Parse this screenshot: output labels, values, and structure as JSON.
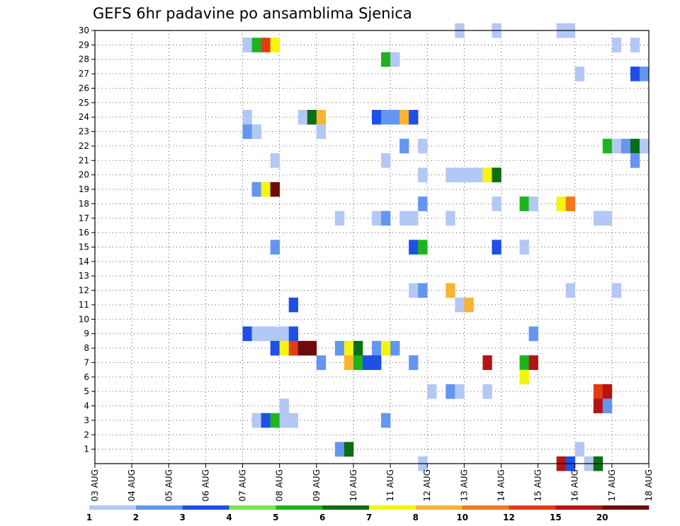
{
  "chart_data": {
    "type": "heatmap",
    "title": "GEFS 6hr padavine po ansamblima Sjenica",
    "x_tick_labels": [
      "03 AUG",
      "04 AUG",
      "05 AUG",
      "06 AUG",
      "07 AUG",
      "08 AUG",
      "09 AUG",
      "10 AUG",
      "11 AUG",
      "12 AUG",
      "13 AUG",
      "14 AUG",
      "15 AUG",
      "16 AUG",
      "17 AUG",
      "18 AUG"
    ],
    "y_tick_labels": [
      "1",
      "2",
      "3",
      "4",
      "5",
      "6",
      "7",
      "8",
      "9",
      "10",
      "11",
      "12",
      "13",
      "14",
      "15",
      "16",
      "17",
      "18",
      "19",
      "20",
      "21",
      "22",
      "23",
      "24",
      "25",
      "26",
      "27",
      "28",
      "29",
      "30"
    ],
    "xlim": [
      "03 AUG 00Z",
      "18 AUG 00Z"
    ],
    "ylim": [
      0,
      30
    ],
    "time_step_hours": 6,
    "grid": true,
    "legend_position": "bottom",
    "colorbar": {
      "levels": [
        "1",
        "2",
        "3",
        "4",
        "5",
        "6",
        "7",
        "8",
        "10",
        "12",
        "15",
        "20"
      ],
      "colors": [
        "#b4c8f5",
        "#6496f0",
        "#1e50e6",
        "#78e650",
        "#1eb41e",
        "#0a6e14",
        "#f5f50a",
        "#fab432",
        "#f5781e",
        "#e13c14",
        "#b41414",
        "#6e0a0a"
      ]
    },
    "cells": [
      {
        "member": 30,
        "step": "13 AUG 00Z",
        "level": 1
      },
      {
        "member": 30,
        "step": "14 AUG 00Z",
        "level": 1
      },
      {
        "member": 30,
        "step": "15 AUG 18Z",
        "level": 1
      },
      {
        "member": 30,
        "step": "16 AUG 00Z",
        "level": 1
      },
      {
        "member": 29,
        "step": "07 AUG 06Z",
        "level": 1
      },
      {
        "member": 29,
        "step": "07 AUG 12Z",
        "level": 5
      },
      {
        "member": 29,
        "step": "07 AUG 18Z",
        "level": 12
      },
      {
        "member": 29,
        "step": "08 AUG 00Z",
        "level": 7
      },
      {
        "member": 29,
        "step": "17 AUG 06Z",
        "level": 1
      },
      {
        "member": 29,
        "step": "17 AUG 18Z",
        "level": 1
      },
      {
        "member": 28,
        "step": "11 AUG 00Z",
        "level": 5
      },
      {
        "member": 28,
        "step": "11 AUG 06Z",
        "level": 1
      },
      {
        "member": 27,
        "step": "16 AUG 06Z",
        "level": 1
      },
      {
        "member": 27,
        "step": "17 AUG 18Z",
        "level": 3
      },
      {
        "member": 27,
        "step": "18 AUG 00Z",
        "level": 2
      },
      {
        "member": 24,
        "step": "07 AUG 06Z",
        "level": 1
      },
      {
        "member": 24,
        "step": "08 AUG 18Z",
        "level": 1
      },
      {
        "member": 24,
        "step": "09 AUG 00Z",
        "level": 6
      },
      {
        "member": 24,
        "step": "09 AUG 06Z",
        "level": 8
      },
      {
        "member": 24,
        "step": "10 AUG 18Z",
        "level": 3
      },
      {
        "member": 24,
        "step": "11 AUG 00Z",
        "level": 2
      },
      {
        "member": 24,
        "step": "11 AUG 06Z",
        "level": 2
      },
      {
        "member": 24,
        "step": "11 AUG 12Z",
        "level": 8
      },
      {
        "member": 24,
        "step": "11 AUG 18Z",
        "level": 3
      },
      {
        "member": 23,
        "step": "07 AUG 06Z",
        "level": 2
      },
      {
        "member": 23,
        "step": "07 AUG 12Z",
        "level": 1
      },
      {
        "member": 23,
        "step": "09 AUG 06Z",
        "level": 1
      },
      {
        "member": 22,
        "step": "11 AUG 12Z",
        "level": 2
      },
      {
        "member": 22,
        "step": "12 AUG 00Z",
        "level": 1
      },
      {
        "member": 22,
        "step": "17 AUG 00Z",
        "level": 5
      },
      {
        "member": 22,
        "step": "17 AUG 06Z",
        "level": 1
      },
      {
        "member": 22,
        "step": "17 AUG 12Z",
        "level": 2
      },
      {
        "member": 22,
        "step": "17 AUG 18Z",
        "level": 6
      },
      {
        "member": 22,
        "step": "18 AUG 00Z",
        "level": 1
      },
      {
        "member": 21,
        "step": "08 AUG 00Z",
        "level": 1
      },
      {
        "member": 21,
        "step": "11 AUG 00Z",
        "level": 1
      },
      {
        "member": 21,
        "step": "17 AUG 18Z",
        "level": 2
      },
      {
        "member": 20,
        "step": "12 AUG 00Z",
        "level": 1
      },
      {
        "member": 20,
        "step": "12 AUG 18Z",
        "level": 1
      },
      {
        "member": 20,
        "step": "13 AUG 00Z",
        "level": 1
      },
      {
        "member": 20,
        "step": "13 AUG 06Z",
        "level": 1
      },
      {
        "member": 20,
        "step": "13 AUG 12Z",
        "level": 1
      },
      {
        "member": 20,
        "step": "13 AUG 18Z",
        "level": 7
      },
      {
        "member": 20,
        "step": "14 AUG 00Z",
        "level": 6
      },
      {
        "member": 19,
        "step": "07 AUG 12Z",
        "level": 2
      },
      {
        "member": 19,
        "step": "07 AUG 18Z",
        "level": 7
      },
      {
        "member": 19,
        "step": "08 AUG 00Z",
        "level": 20
      },
      {
        "member": 18,
        "step": "12 AUG 00Z",
        "level": 2
      },
      {
        "member": 18,
        "step": "14 AUG 00Z",
        "level": 1
      },
      {
        "member": 18,
        "step": "14 AUG 18Z",
        "level": 5
      },
      {
        "member": 18,
        "step": "15 AUG 00Z",
        "level": 1
      },
      {
        "member": 18,
        "step": "15 AUG 18Z",
        "level": 7
      },
      {
        "member": 18,
        "step": "16 AUG 00Z",
        "level": 10
      },
      {
        "member": 17,
        "step": "09 AUG 18Z",
        "level": 1
      },
      {
        "member": 17,
        "step": "10 AUG 18Z",
        "level": 1
      },
      {
        "member": 17,
        "step": "11 AUG 00Z",
        "level": 2
      },
      {
        "member": 17,
        "step": "11 AUG 12Z",
        "level": 1
      },
      {
        "member": 17,
        "step": "11 AUG 18Z",
        "level": 1
      },
      {
        "member": 17,
        "step": "12 AUG 18Z",
        "level": 1
      },
      {
        "member": 17,
        "step": "16 AUG 18Z",
        "level": 1
      },
      {
        "member": 17,
        "step": "17 AUG 00Z",
        "level": 1
      },
      {
        "member": 15,
        "step": "08 AUG 00Z",
        "level": 2
      },
      {
        "member": 15,
        "step": "11 AUG 18Z",
        "level": 3
      },
      {
        "member": 15,
        "step": "12 AUG 00Z",
        "level": 5
      },
      {
        "member": 15,
        "step": "14 AUG 00Z",
        "level": 3
      },
      {
        "member": 15,
        "step": "14 AUG 18Z",
        "level": 1
      },
      {
        "member": 12,
        "step": "11 AUG 18Z",
        "level": 1
      },
      {
        "member": 12,
        "step": "12 AUG 00Z",
        "level": 2
      },
      {
        "member": 12,
        "step": "12 AUG 18Z",
        "level": 8
      },
      {
        "member": 12,
        "step": "16 AUG 00Z",
        "level": 1
      },
      {
        "member": 12,
        "step": "17 AUG 06Z",
        "level": 1
      },
      {
        "member": 11,
        "step": "08 AUG 12Z",
        "level": 3
      },
      {
        "member": 11,
        "step": "13 AUG 00Z",
        "level": 1
      },
      {
        "member": 11,
        "step": "13 AUG 06Z",
        "level": 8
      },
      {
        "member": 9,
        "step": "07 AUG 06Z",
        "level": 3
      },
      {
        "member": 9,
        "step": "07 AUG 12Z",
        "level": 1
      },
      {
        "member": 9,
        "step": "07 AUG 18Z",
        "level": 1
      },
      {
        "member": 9,
        "step": "08 AUG 00Z",
        "level": 1
      },
      {
        "member": 9,
        "step": "08 AUG 06Z",
        "level": 1
      },
      {
        "member": 9,
        "step": "08 AUG 12Z",
        "level": 3
      },
      {
        "member": 9,
        "step": "15 AUG 00Z",
        "level": 2
      },
      {
        "member": 8,
        "step": "08 AUG 00Z",
        "level": 3
      },
      {
        "member": 8,
        "step": "08 AUG 06Z",
        "level": 7
      },
      {
        "member": 8,
        "step": "08 AUG 12Z",
        "level": 12
      },
      {
        "member": 8,
        "step": "08 AUG 18Z",
        "level": 20
      },
      {
        "member": 8,
        "step": "09 AUG 00Z",
        "level": 20
      },
      {
        "member": 8,
        "step": "09 AUG 18Z",
        "level": 2
      },
      {
        "member": 8,
        "step": "10 AUG 00Z",
        "level": 7
      },
      {
        "member": 8,
        "step": "10 AUG 06Z",
        "level": 6
      },
      {
        "member": 8,
        "step": "10 AUG 18Z",
        "level": 2
      },
      {
        "member": 8,
        "step": "11 AUG 00Z",
        "level": 7
      },
      {
        "member": 8,
        "step": "11 AUG 06Z",
        "level": 2
      },
      {
        "member": 7,
        "step": "09 AUG 06Z",
        "level": 2
      },
      {
        "member": 7,
        "step": "10 AUG 00Z",
        "level": 8
      },
      {
        "member": 7,
        "step": "10 AUG 06Z",
        "level": 5
      },
      {
        "member": 7,
        "step": "10 AUG 12Z",
        "level": 3
      },
      {
        "member": 7,
        "step": "10 AUG 18Z",
        "level": 3
      },
      {
        "member": 7,
        "step": "11 AUG 18Z",
        "level": 2
      },
      {
        "member": 7,
        "step": "13 AUG 18Z",
        "level": 15
      },
      {
        "member": 7,
        "step": "14 AUG 18Z",
        "level": 5
      },
      {
        "member": 7,
        "step": "15 AUG 00Z",
        "level": 15
      },
      {
        "member": 6,
        "step": "14 AUG 18Z",
        "level": 7
      },
      {
        "member": 5,
        "step": "12 AUG 06Z",
        "level": 1
      },
      {
        "member": 5,
        "step": "12 AUG 18Z",
        "level": 2
      },
      {
        "member": 5,
        "step": "13 AUG 00Z",
        "level": 1
      },
      {
        "member": 5,
        "step": "13 AUG 18Z",
        "level": 1
      },
      {
        "member": 5,
        "step": "16 AUG 18Z",
        "level": 12
      },
      {
        "member": 5,
        "step": "17 AUG 00Z",
        "level": 15
      },
      {
        "member": 4,
        "step": "08 AUG 06Z",
        "level": 1
      },
      {
        "member": 4,
        "step": "16 AUG 18Z",
        "level": 15
      },
      {
        "member": 4,
        "step": "17 AUG 00Z",
        "level": 2
      },
      {
        "member": 3,
        "step": "07 AUG 12Z",
        "level": 1
      },
      {
        "member": 3,
        "step": "07 AUG 18Z",
        "level": 3
      },
      {
        "member": 3,
        "step": "08 AUG 00Z",
        "level": 5
      },
      {
        "member": 3,
        "step": "08 AUG 06Z",
        "level": 1
      },
      {
        "member": 3,
        "step": "08 AUG 12Z",
        "level": 1
      },
      {
        "member": 3,
        "step": "11 AUG 00Z",
        "level": 2
      },
      {
        "member": 1,
        "step": "09 AUG 18Z",
        "level": 2
      },
      {
        "member": 1,
        "step": "10 AUG 00Z",
        "level": 6
      },
      {
        "member": 1,
        "step": "16 AUG 06Z",
        "level": 1
      },
      {
        "member": 0,
        "step": "12 AUG 00Z",
        "level": 1
      },
      {
        "member": 0,
        "step": "15 AUG 18Z",
        "level": 15
      },
      {
        "member": 0,
        "step": "16 AUG 00Z",
        "level": 3
      },
      {
        "member": 0,
        "step": "16 AUG 12Z",
        "level": 1
      },
      {
        "member": 0,
        "step": "16 AUG 18Z",
        "level": 6
      }
    ]
  }
}
